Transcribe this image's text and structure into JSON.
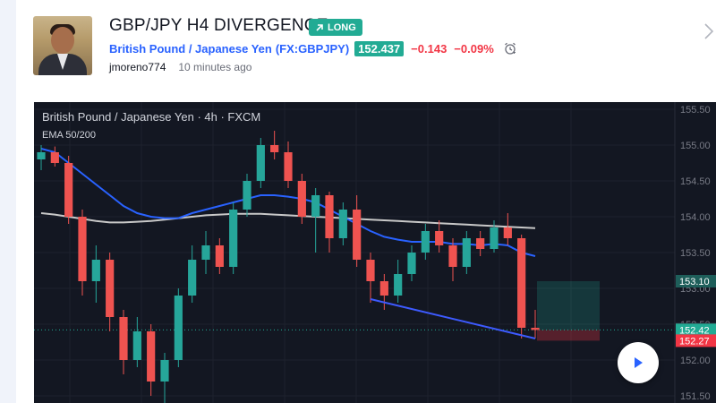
{
  "post": {
    "title": "GBP/JPY H4 DIVERGENCE",
    "badge": "LONG",
    "symbol_name": "British Pound / Japanese Yen",
    "symbol_ticker": "(FX:GBPJPY)",
    "price": "152.437",
    "change": "−0.143",
    "change_pct": "−0.09%",
    "author": "jmoreno774",
    "time_ago": "10 minutes ago"
  },
  "chart": {
    "header": "British Pound / Japanese Yen · 4h · FXCM",
    "indicator": "EMA 50/200",
    "y_ticks": [
      "155.50",
      "155.00",
      "154.50",
      "154.00",
      "153.50",
      "153.00",
      "152.50",
      "152.00",
      "151.50"
    ],
    "price_tags": [
      {
        "label": "153.10",
        "color": "#1e5e5a",
        "value": 153.1
      },
      {
        "label": "152.43",
        "color": "#363a45",
        "value": 152.43
      },
      {
        "label": "152.42",
        "color": "#22ab94",
        "value": 152.42
      },
      {
        "label": "152.27",
        "color": "#f23645",
        "value": 152.27
      }
    ],
    "colors": {
      "up": "#26a69a",
      "down": "#ef5350",
      "ema50": "#2962ff",
      "ema200": "#c8c8c8",
      "trendline": "#3d5afe"
    }
  },
  "chart_data": {
    "type": "candlestick",
    "title": "British Pound / Japanese Yen · 4h · FXCM",
    "ylim": [
      151.4,
      155.6
    ],
    "candles": [
      {
        "o": 154.8,
        "h": 155.0,
        "l": 154.65,
        "c": 154.9
      },
      {
        "o": 154.9,
        "h": 154.98,
        "l": 154.7,
        "c": 154.75
      },
      {
        "o": 154.75,
        "h": 154.85,
        "l": 153.9,
        "c": 154.0
      },
      {
        "o": 154.0,
        "h": 154.1,
        "l": 152.9,
        "c": 153.1
      },
      {
        "o": 153.1,
        "h": 153.6,
        "l": 152.8,
        "c": 153.4
      },
      {
        "o": 153.4,
        "h": 153.5,
        "l": 152.4,
        "c": 152.6
      },
      {
        "o": 152.6,
        "h": 152.7,
        "l": 151.8,
        "c": 152.0
      },
      {
        "o": 152.0,
        "h": 152.6,
        "l": 151.9,
        "c": 152.4
      },
      {
        "o": 152.4,
        "h": 152.5,
        "l": 151.5,
        "c": 151.7
      },
      {
        "o": 151.7,
        "h": 152.1,
        "l": 151.4,
        "c": 152.0
      },
      {
        "o": 152.0,
        "h": 153.0,
        "l": 151.9,
        "c": 152.9
      },
      {
        "o": 152.9,
        "h": 153.6,
        "l": 152.8,
        "c": 153.4
      },
      {
        "o": 153.4,
        "h": 153.8,
        "l": 153.2,
        "c": 153.6
      },
      {
        "o": 153.6,
        "h": 153.7,
        "l": 153.2,
        "c": 153.3
      },
      {
        "o": 153.3,
        "h": 154.2,
        "l": 153.2,
        "c": 154.1
      },
      {
        "o": 154.1,
        "h": 154.6,
        "l": 154.0,
        "c": 154.5
      },
      {
        "o": 154.5,
        "h": 155.1,
        "l": 154.4,
        "c": 155.0
      },
      {
        "o": 155.0,
        "h": 155.2,
        "l": 154.8,
        "c": 154.9
      },
      {
        "o": 154.9,
        "h": 155.05,
        "l": 154.4,
        "c": 154.5
      },
      {
        "o": 154.5,
        "h": 154.6,
        "l": 153.9,
        "c": 154.0
      },
      {
        "o": 154.0,
        "h": 154.4,
        "l": 153.5,
        "c": 154.3
      },
      {
        "o": 154.3,
        "h": 154.35,
        "l": 153.5,
        "c": 153.7
      },
      {
        "o": 153.7,
        "h": 154.2,
        "l": 153.6,
        "c": 154.1
      },
      {
        "o": 154.1,
        "h": 154.3,
        "l": 153.3,
        "c": 153.4
      },
      {
        "o": 153.4,
        "h": 153.5,
        "l": 152.8,
        "c": 153.1
      },
      {
        "o": 153.1,
        "h": 153.2,
        "l": 152.7,
        "c": 152.9
      },
      {
        "o": 152.9,
        "h": 153.4,
        "l": 152.8,
        "c": 153.2
      },
      {
        "o": 153.2,
        "h": 153.6,
        "l": 153.1,
        "c": 153.5
      },
      {
        "o": 153.5,
        "h": 153.9,
        "l": 153.4,
        "c": 153.8
      },
      {
        "o": 153.8,
        "h": 153.95,
        "l": 153.5,
        "c": 153.6
      },
      {
        "o": 153.6,
        "h": 153.7,
        "l": 153.1,
        "c": 153.3
      },
      {
        "o": 153.3,
        "h": 153.8,
        "l": 153.2,
        "c": 153.7
      },
      {
        "o": 153.7,
        "h": 153.8,
        "l": 153.45,
        "c": 153.55
      },
      {
        "o": 153.55,
        "h": 153.95,
        "l": 153.5,
        "c": 153.85
      },
      {
        "o": 153.85,
        "h": 154.05,
        "l": 153.6,
        "c": 153.7
      },
      {
        "o": 153.7,
        "h": 153.75,
        "l": 152.3,
        "c": 152.45
      },
      {
        "o": 152.45,
        "h": 152.7,
        "l": 152.3,
        "c": 152.42
      }
    ],
    "ema50": [
      154.95,
      154.9,
      154.75,
      154.6,
      154.45,
      154.3,
      154.15,
      154.05,
      154.0,
      153.98,
      153.98,
      154.05,
      154.1,
      154.15,
      154.2,
      154.25,
      154.3,
      154.3,
      154.28,
      154.25,
      154.2,
      154.1,
      154.0,
      153.9,
      153.8,
      153.72,
      153.68,
      153.65,
      153.65,
      153.65,
      153.62,
      153.62,
      153.6,
      153.62,
      153.6,
      153.5,
      153.45
    ],
    "ema200": [
      154.05,
      154.03,
      154.0,
      153.97,
      153.94,
      153.92,
      153.92,
      153.93,
      153.94,
      153.96,
      153.98,
      154.0,
      154.02,
      154.03,
      154.04,
      154.04,
      154.04,
      154.03,
      154.02,
      154.01,
      154.0,
      153.99,
      153.98,
      153.97,
      153.96,
      153.95,
      153.94,
      153.93,
      153.92,
      153.91,
      153.9,
      153.89,
      153.88,
      153.87,
      153.86,
      153.85,
      153.84
    ],
    "trendline": [
      {
        "i": 24,
        "v": 152.85
      },
      {
        "i": 36,
        "v": 152.3
      }
    ],
    "position": {
      "entry": 152.42,
      "target": 153.1,
      "stop": 152.27
    }
  },
  "ui": {
    "play_label": "play",
    "alarm_label": "add alert",
    "close_label": "next"
  }
}
